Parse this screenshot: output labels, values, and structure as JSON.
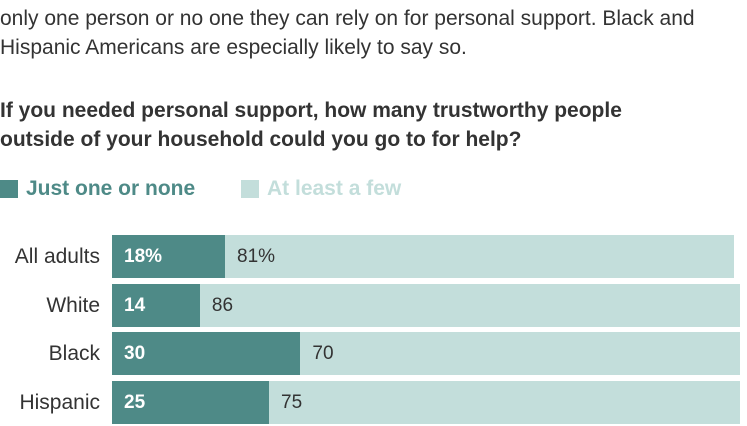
{
  "intro": {
    "line1": "only one person or no one they can rely on for personal support. Black and",
    "line2": "Hispanic Americans are especially likely to say so."
  },
  "chart_data": {
    "type": "bar",
    "orientation": "horizontal",
    "stacked": true,
    "title_lines": [
      "If you needed personal support, how many trustworthy people",
      "outside of your household could you go to for help?"
    ],
    "categories": [
      "All adults",
      "White",
      "Black",
      "Hispanic"
    ],
    "series": [
      {
        "name": "Just one or none",
        "color": "#4e8a87",
        "values": [
          18,
          14,
          30,
          25
        ],
        "labels": [
          "18%",
          "14",
          "30",
          "25"
        ]
      },
      {
        "name": "At least a few",
        "color": "#c3dedb",
        "values": [
          81,
          86,
          70,
          75
        ],
        "labels": [
          "81%",
          "86",
          "70",
          "75"
        ]
      }
    ],
    "xlim": [
      0,
      100
    ],
    "legend_position": "top-left",
    "grid": false
  }
}
